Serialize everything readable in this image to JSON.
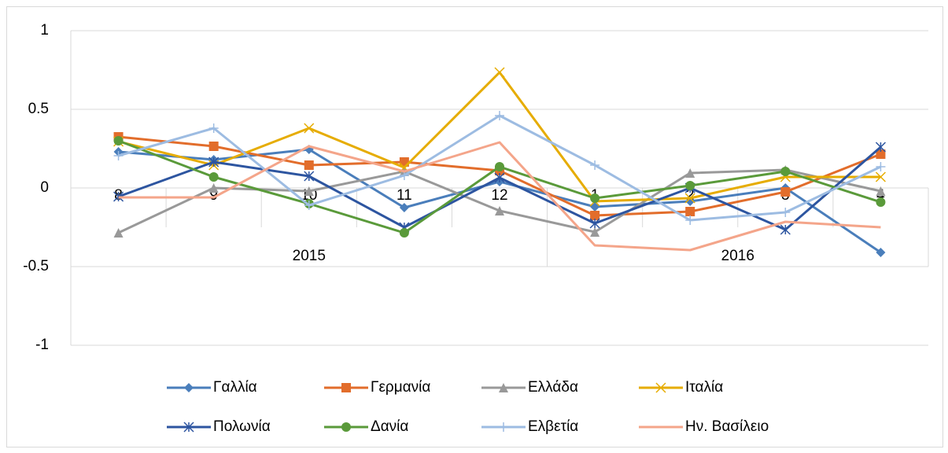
{
  "chart_data": {
    "type": "line",
    "category_groups": [
      {
        "name": "2015",
        "categories": [
          "8",
          "9",
          "10",
          "11",
          "12"
        ]
      },
      {
        "name": "2016",
        "categories": [
          "1",
          "2",
          "3",
          "4"
        ]
      }
    ],
    "ylim": [
      -1,
      1
    ],
    "yticks": [
      -1,
      -0.5,
      0,
      0.5,
      1
    ],
    "grid": true,
    "legend": "bottom",
    "series": [
      {
        "name": "Γαλλία",
        "color": "#4a7ebb",
        "marker": "diamond",
        "values": [
          0.23,
          0.18,
          0.245,
          -0.125,
          0.04,
          -0.12,
          -0.085,
          0.0,
          -0.41
        ]
      },
      {
        "name": "Γερμανία",
        "color": "#e26d2b",
        "marker": "square",
        "values": [
          0.325,
          0.265,
          0.145,
          0.165,
          0.11,
          -0.175,
          -0.15,
          -0.025,
          0.215
        ]
      },
      {
        "name": "Ελλάδα",
        "color": "#999999",
        "marker": "triangle",
        "values": [
          -0.285,
          0.0,
          -0.02,
          0.105,
          -0.145,
          -0.28,
          0.095,
          0.115,
          -0.02
        ]
      },
      {
        "name": "Ιταλία",
        "color": "#e6ac00",
        "marker": "x",
        "values": [
          0.295,
          0.145,
          0.38,
          0.13,
          0.735,
          -0.085,
          -0.065,
          0.07,
          0.07
        ]
      },
      {
        "name": "Πολωνία",
        "color": "#2d55a0",
        "marker": "star",
        "values": [
          -0.055,
          0.165,
          0.075,
          -0.25,
          0.065,
          -0.225,
          0.0,
          -0.265,
          0.26
        ]
      },
      {
        "name": "Δανία",
        "color": "#5a9a3a",
        "marker": "circle",
        "values": [
          0.3,
          0.07,
          -0.1,
          -0.285,
          0.135,
          -0.065,
          0.015,
          0.105,
          -0.09
        ]
      },
      {
        "name": "Ελβετία",
        "color": "#9dbce2",
        "marker": "plus",
        "values": [
          0.205,
          0.38,
          -0.11,
          0.08,
          0.46,
          0.145,
          -0.205,
          -0.155,
          0.135
        ]
      },
      {
        "name": "Ην. Βασίλειο",
        "color": "#f4a58a",
        "marker": "dash",
        "values": [
          -0.06,
          -0.06,
          0.265,
          0.105,
          0.29,
          -0.365,
          -0.395,
          -0.215,
          -0.25
        ]
      }
    ]
  }
}
